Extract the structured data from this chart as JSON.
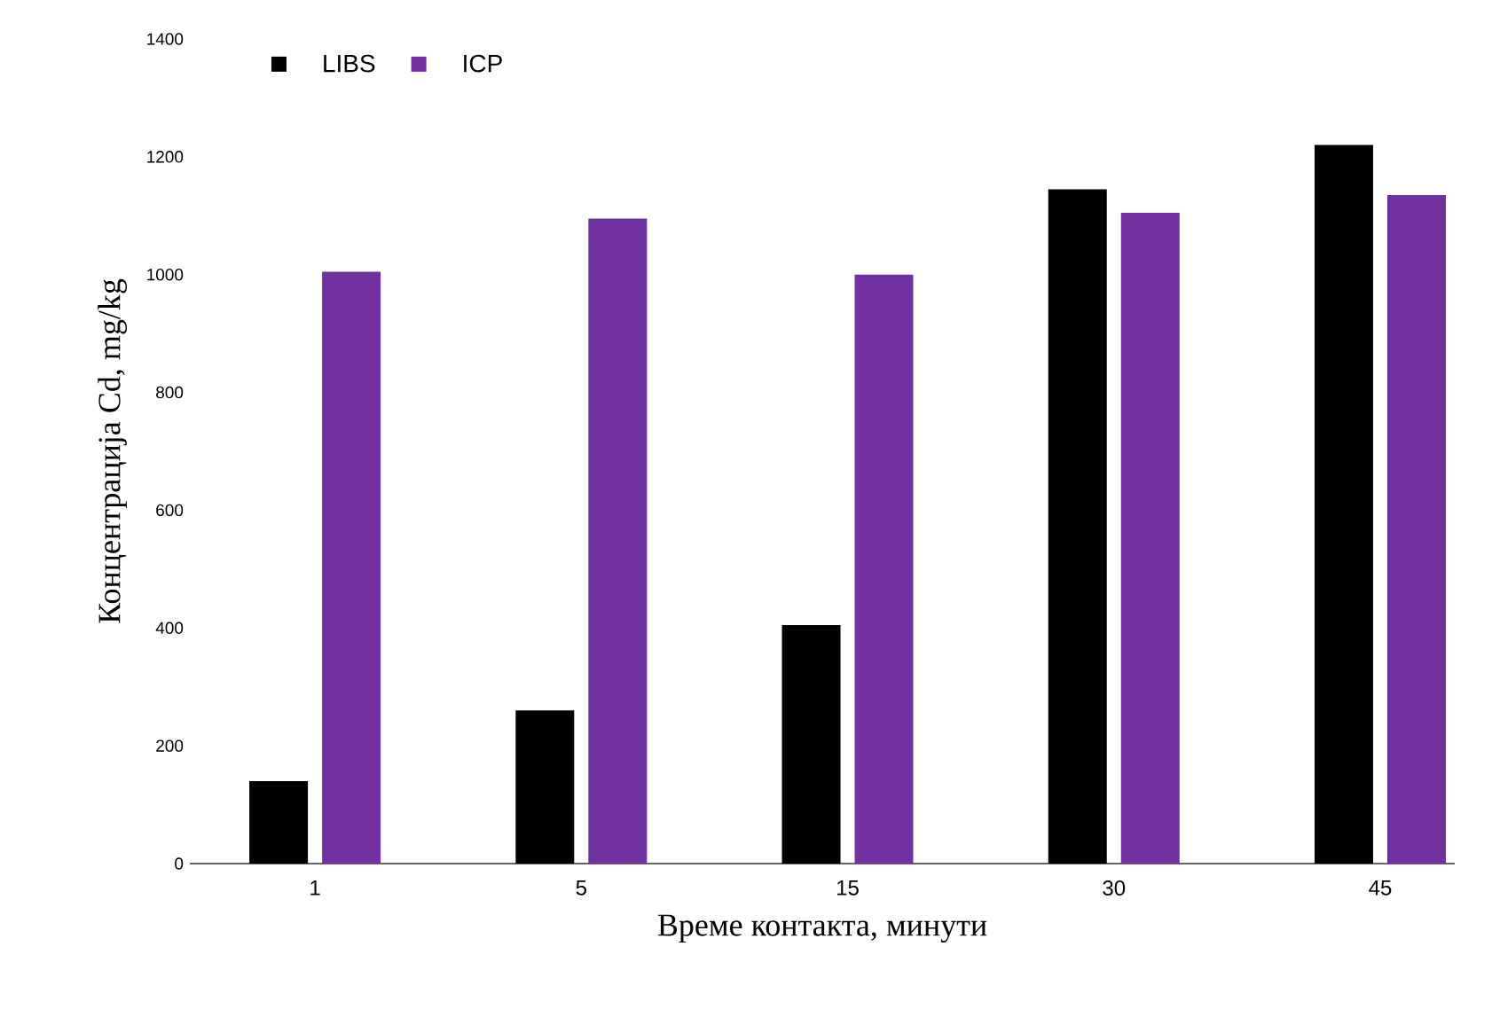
{
  "chart_data": {
    "type": "bar",
    "xlabel": "Време контакта, минути",
    "ylabel": "Концентрација Cd, mg/kg",
    "categories": [
      "1",
      "5",
      "15",
      "30",
      "45"
    ],
    "series": [
      {
        "name": "LIBS",
        "color": "#000000",
        "values": [
          140,
          260,
          405,
          1145,
          1220
        ]
      },
      {
        "name": "ICP",
        "color": "#7030a0",
        "values": [
          1005,
          1095,
          1000,
          1105,
          1135
        ]
      }
    ],
    "ylim": [
      0,
      1400
    ],
    "yticks": [
      0,
      200,
      400,
      600,
      800,
      1000,
      1200,
      1400
    ],
    "legend": "top left"
  }
}
